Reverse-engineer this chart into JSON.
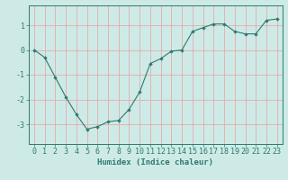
{
  "x": [
    0,
    1,
    2,
    3,
    4,
    5,
    6,
    7,
    8,
    9,
    10,
    11,
    12,
    13,
    14,
    15,
    16,
    17,
    18,
    19,
    20,
    21,
    22,
    23
  ],
  "y": [
    0.0,
    -0.3,
    -1.1,
    -1.9,
    -2.6,
    -3.2,
    -3.1,
    -2.9,
    -2.85,
    -2.4,
    -1.7,
    -0.55,
    -0.35,
    -0.05,
    0.0,
    0.75,
    0.9,
    1.05,
    1.05,
    0.75,
    0.65,
    0.65,
    1.2,
    1.25
  ],
  "line_color": "#2d7a6e",
  "marker": "D",
  "marker_size": 1.8,
  "bg_color": "#ceeae7",
  "grid_color": "#e8a0a0",
  "axis_color": "#2d7a6e",
  "xlabel": "Humidex (Indice chaleur)",
  "xlim": [
    -0.5,
    23.5
  ],
  "ylim": [
    -3.8,
    1.8
  ],
  "yticks": [
    -3,
    -2,
    -1,
    0,
    1
  ],
  "xticks": [
    0,
    1,
    2,
    3,
    4,
    5,
    6,
    7,
    8,
    9,
    10,
    11,
    12,
    13,
    14,
    15,
    16,
    17,
    18,
    19,
    20,
    21,
    22,
    23
  ],
  "xlabel_fontsize": 6.5,
  "tick_fontsize": 6.0
}
